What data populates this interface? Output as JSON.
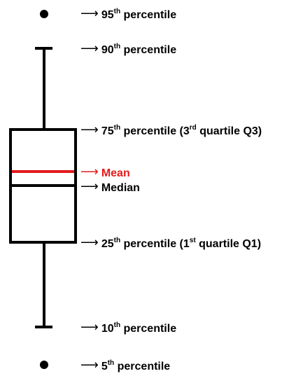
{
  "colors": {
    "box": "#000000",
    "mean_line": "#e31a1c"
  },
  "labels": {
    "p95": {
      "value": "95",
      "suffix": "th",
      "text": " percentile"
    },
    "p90": {
      "value": "90",
      "suffix": "th",
      "text": " percentile"
    },
    "p75": {
      "value": "75",
      "suffix": "th",
      "text": " percentile (3",
      "suffix2": "rd",
      "text2": " quartile Q3)"
    },
    "mean": {
      "text": "Mean"
    },
    "median": {
      "text": "Median"
    },
    "p25": {
      "value": "25",
      "suffix": "th",
      "text": " percentile (1",
      "suffix2": "st",
      "text2": " quartile Q1)"
    },
    "p10": {
      "value": "10",
      "suffix": "th",
      "text": " percentile"
    },
    "p5": {
      "value": "5",
      "suffix": "th",
      "text": " percentile"
    }
  },
  "arrow_glyph": "⟶"
}
